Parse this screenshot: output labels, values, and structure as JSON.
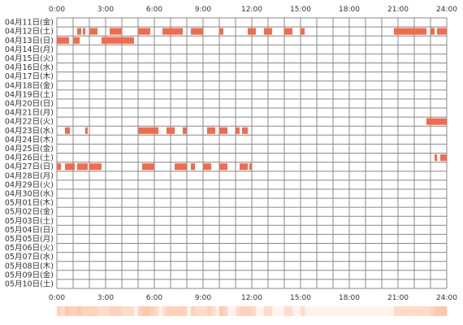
{
  "chart_data": {
    "type": "heatmap",
    "time_labels": [
      "0:00",
      "3:00",
      "6:00",
      "9:00",
      "12:00",
      "15:00",
      "18:00",
      "21:00",
      "24:00"
    ],
    "x_range_hours": [
      0,
      24
    ],
    "hours_per_column": 1,
    "slots_per_column": 4,
    "grid": true,
    "days": [
      {
        "label": "04月11日(金)",
        "intervals": []
      },
      {
        "label": "04月12日(土)",
        "intervals": [
          [
            1.25,
            1.5
          ],
          [
            1.6,
            1.75
          ],
          [
            2.0,
            2.5
          ],
          [
            3.25,
            4.0
          ],
          [
            5.0,
            5.75
          ],
          [
            6.5,
            7.75
          ],
          [
            8.25,
            9.0
          ],
          [
            10.0,
            10.25
          ],
          [
            11.75,
            12.25
          ],
          [
            12.75,
            13.25
          ],
          [
            14.0,
            14.5
          ],
          [
            15.0,
            15.25
          ],
          [
            20.75,
            22.75
          ],
          [
            23.0,
            23.25
          ],
          [
            23.4,
            24.0
          ]
        ]
      },
      {
        "label": "04月13日(日)",
        "intervals": [
          [
            0.0,
            0.75
          ],
          [
            1.0,
            1.4
          ],
          [
            2.75,
            4.75
          ]
        ]
      },
      {
        "label": "04月14日(月)",
        "intervals": []
      },
      {
        "label": "04月15日(火)",
        "intervals": []
      },
      {
        "label": "04月16日(水)",
        "intervals": []
      },
      {
        "label": "04月17日(木)",
        "intervals": []
      },
      {
        "label": "04月18日(金)",
        "intervals": []
      },
      {
        "label": "04月19日(土)",
        "intervals": []
      },
      {
        "label": "04月20日(日)",
        "intervals": []
      },
      {
        "label": "04月21日(月)",
        "intervals": []
      },
      {
        "label": "04月22日(火)",
        "intervals": [
          [
            22.75,
            24.0
          ]
        ]
      },
      {
        "label": "04月23日(水)",
        "intervals": [
          [
            0.5,
            0.8
          ],
          [
            1.75,
            1.9
          ],
          [
            5.0,
            6.25
          ],
          [
            6.75,
            7.25
          ],
          [
            7.75,
            8.0
          ],
          [
            9.25,
            9.75
          ],
          [
            10.0,
            10.5
          ],
          [
            11.0,
            11.25
          ],
          [
            11.4,
            11.75
          ]
        ]
      },
      {
        "label": "04月24日(木)",
        "intervals": []
      },
      {
        "label": "04月25日(金)",
        "intervals": []
      },
      {
        "label": "04月26日(土)",
        "intervals": [
          [
            23.25,
            23.4
          ],
          [
            23.6,
            24.0
          ]
        ]
      },
      {
        "label": "04月27日(日)",
        "intervals": [
          [
            0.0,
            0.25
          ],
          [
            0.5,
            1.1
          ],
          [
            1.25,
            1.9
          ],
          [
            2.0,
            2.75
          ],
          [
            5.25,
            6.0
          ],
          [
            7.25,
            8.0
          ],
          [
            8.25,
            8.5
          ],
          [
            9.0,
            9.5
          ],
          [
            10.0,
            10.5
          ],
          [
            11.25,
            11.75
          ],
          [
            11.85,
            12.0
          ]
        ]
      },
      {
        "label": "04月28日(月)",
        "intervals": []
      },
      {
        "label": "04月29日(火)",
        "intervals": []
      },
      {
        "label": "04月30日(水)",
        "intervals": []
      },
      {
        "label": "05月01日(木)",
        "intervals": []
      },
      {
        "label": "05月02日(金)",
        "intervals": []
      },
      {
        "label": "05月03日(土)",
        "intervals": []
      },
      {
        "label": "05月04日(日)",
        "intervals": []
      },
      {
        "label": "05月05日(月)",
        "intervals": []
      },
      {
        "label": "05月06日(火)",
        "intervals": []
      },
      {
        "label": "05月07日(水)",
        "intervals": []
      },
      {
        "label": "05月08日(木)",
        "intervals": []
      },
      {
        "label": "05月09日(金)",
        "intervals": []
      },
      {
        "label": "05月10日(土)",
        "intervals": []
      }
    ],
    "summary_bar": "hourly activity density across all days",
    "colors": {
      "active": "#f26b4d",
      "grid_major": "#888888",
      "grid_minor": "#bbbbbb",
      "summary_base": "#fff3ec",
      "summary_peak": "#ffc9ae"
    }
  }
}
